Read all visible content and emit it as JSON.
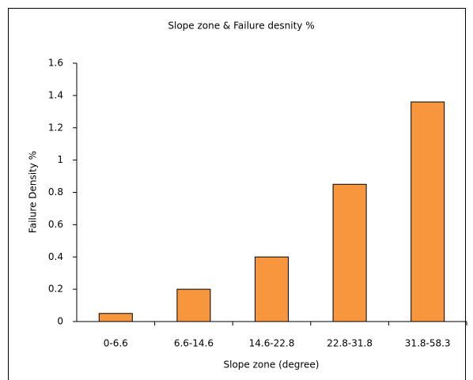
{
  "chart_data": {
    "type": "bar",
    "title": "Slope zone & Failure desnity %",
    "x_label": "Slope zone (degree)",
    "y_label": "Failure Density %",
    "categories": [
      "0-6.6",
      "6.6-14.6",
      "14.6-22.8",
      "22.8-31.8",
      "31.8-58.3"
    ],
    "values": [
      0.05,
      0.2,
      0.4,
      0.85,
      1.36
    ],
    "color": "#f7963c",
    "ylim": [
      0,
      1.6
    ],
    "yticks": [
      0,
      0.2,
      0.4,
      0.6,
      0.8,
      1,
      1.2,
      1.4,
      1.6
    ],
    "grid": false
  }
}
